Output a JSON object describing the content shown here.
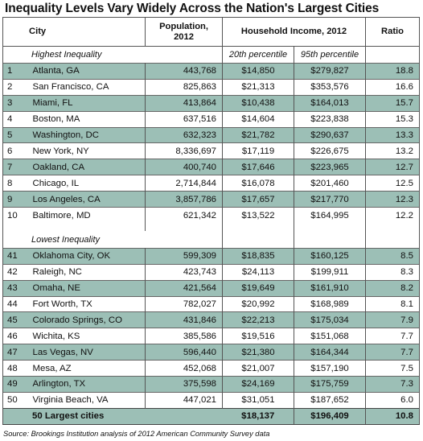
{
  "title": "Inequality Levels Vary Widely Across the Nation's Largest Cities",
  "header": {
    "city": "City",
    "population": "Population,\n2012",
    "income": "Household Income, 2012",
    "ratio": "Ratio"
  },
  "sections": {
    "highest": "Highest Inequality",
    "lowest": "Lowest Inequality",
    "pct20": "20th percentile",
    "pct95": "95th percentile"
  },
  "highest_rows": [
    {
      "rank": "1",
      "city": "Atlanta, GA",
      "population": "443,768",
      "p20": "$14,850",
      "p95": "$279,827",
      "ratio": "18.8"
    },
    {
      "rank": "2",
      "city": "San Francisco, CA",
      "population": "825,863",
      "p20": "$21,313",
      "p95": "$353,576",
      "ratio": "16.6"
    },
    {
      "rank": "3",
      "city": "Miami, FL",
      "population": "413,864",
      "p20": "$10,438",
      "p95": "$164,013",
      "ratio": "15.7"
    },
    {
      "rank": "4",
      "city": "Boston, MA",
      "population": "637,516",
      "p20": "$14,604",
      "p95": "$223,838",
      "ratio": "15.3"
    },
    {
      "rank": "5",
      "city": "Washington, DC",
      "population": "632,323",
      "p20": "$21,782",
      "p95": "$290,637",
      "ratio": "13.3"
    },
    {
      "rank": "6",
      "city": "New York, NY",
      "population": "8,336,697",
      "p20": "$17,119",
      "p95": "$226,675",
      "ratio": "13.2"
    },
    {
      "rank": "7",
      "city": "Oakland, CA",
      "population": "400,740",
      "p20": "$17,646",
      "p95": "$223,965",
      "ratio": "12.7"
    },
    {
      "rank": "8",
      "city": "Chicago, IL",
      "population": "2,714,844",
      "p20": "$16,078",
      "p95": "$201,460",
      "ratio": "12.5"
    },
    {
      "rank": "9",
      "city": "Los Angeles, CA",
      "population": "3,857,786",
      "p20": "$17,657",
      "p95": "$217,770",
      "ratio": "12.3"
    },
    {
      "rank": "10",
      "city": "Baltimore, MD",
      "population": "621,342",
      "p20": "$13,522",
      "p95": "$164,995",
      "ratio": "12.2"
    }
  ],
  "lowest_rows": [
    {
      "rank": "41",
      "city": "Oklahoma City, OK",
      "population": "599,309",
      "p20": "$18,835",
      "p95": "$160,125",
      "ratio": "8.5"
    },
    {
      "rank": "42",
      "city": "Raleigh, NC",
      "population": "423,743",
      "p20": "$24,113",
      "p95": "$199,911",
      "ratio": "8.3"
    },
    {
      "rank": "43",
      "city": "Omaha, NE",
      "population": "421,564",
      "p20": "$19,649",
      "p95": "$161,910",
      "ratio": "8.2"
    },
    {
      "rank": "44",
      "city": "Fort Worth, TX",
      "population": "782,027",
      "p20": "$20,992",
      "p95": "$168,989",
      "ratio": "8.1"
    },
    {
      "rank": "45",
      "city": "Colorado Springs, CO",
      "population": "431,846",
      "p20": "$22,213",
      "p95": "$175,034",
      "ratio": "7.9"
    },
    {
      "rank": "46",
      "city": "Wichita, KS",
      "population": "385,586",
      "p20": "$19,516",
      "p95": "$151,068",
      "ratio": "7.7"
    },
    {
      "rank": "47",
      "city": "Las Vegas, NV",
      "population": "596,440",
      "p20": "$21,380",
      "p95": "$164,344",
      "ratio": "7.7"
    },
    {
      "rank": "48",
      "city": "Mesa, AZ",
      "population": "452,068",
      "p20": "$21,007",
      "p95": "$157,190",
      "ratio": "7.5"
    },
    {
      "rank": "49",
      "city": "Arlington, TX",
      "population": "375,598",
      "p20": "$24,169",
      "p95": "$175,759",
      "ratio": "7.3"
    },
    {
      "rank": "50",
      "city": "Virginia Beach, VA",
      "population": "447,021",
      "p20": "$31,051",
      "p95": "$187,652",
      "ratio": "6.0"
    }
  ],
  "total": {
    "label": "50 Largest cities",
    "p20": "$18,137",
    "p95": "$196,409",
    "ratio": "10.8"
  },
  "source": "Source: Brookings Institution analysis of 2012 American Community Survey data",
  "colors": {
    "shade": "#9cbfb6",
    "text": "#111111"
  }
}
